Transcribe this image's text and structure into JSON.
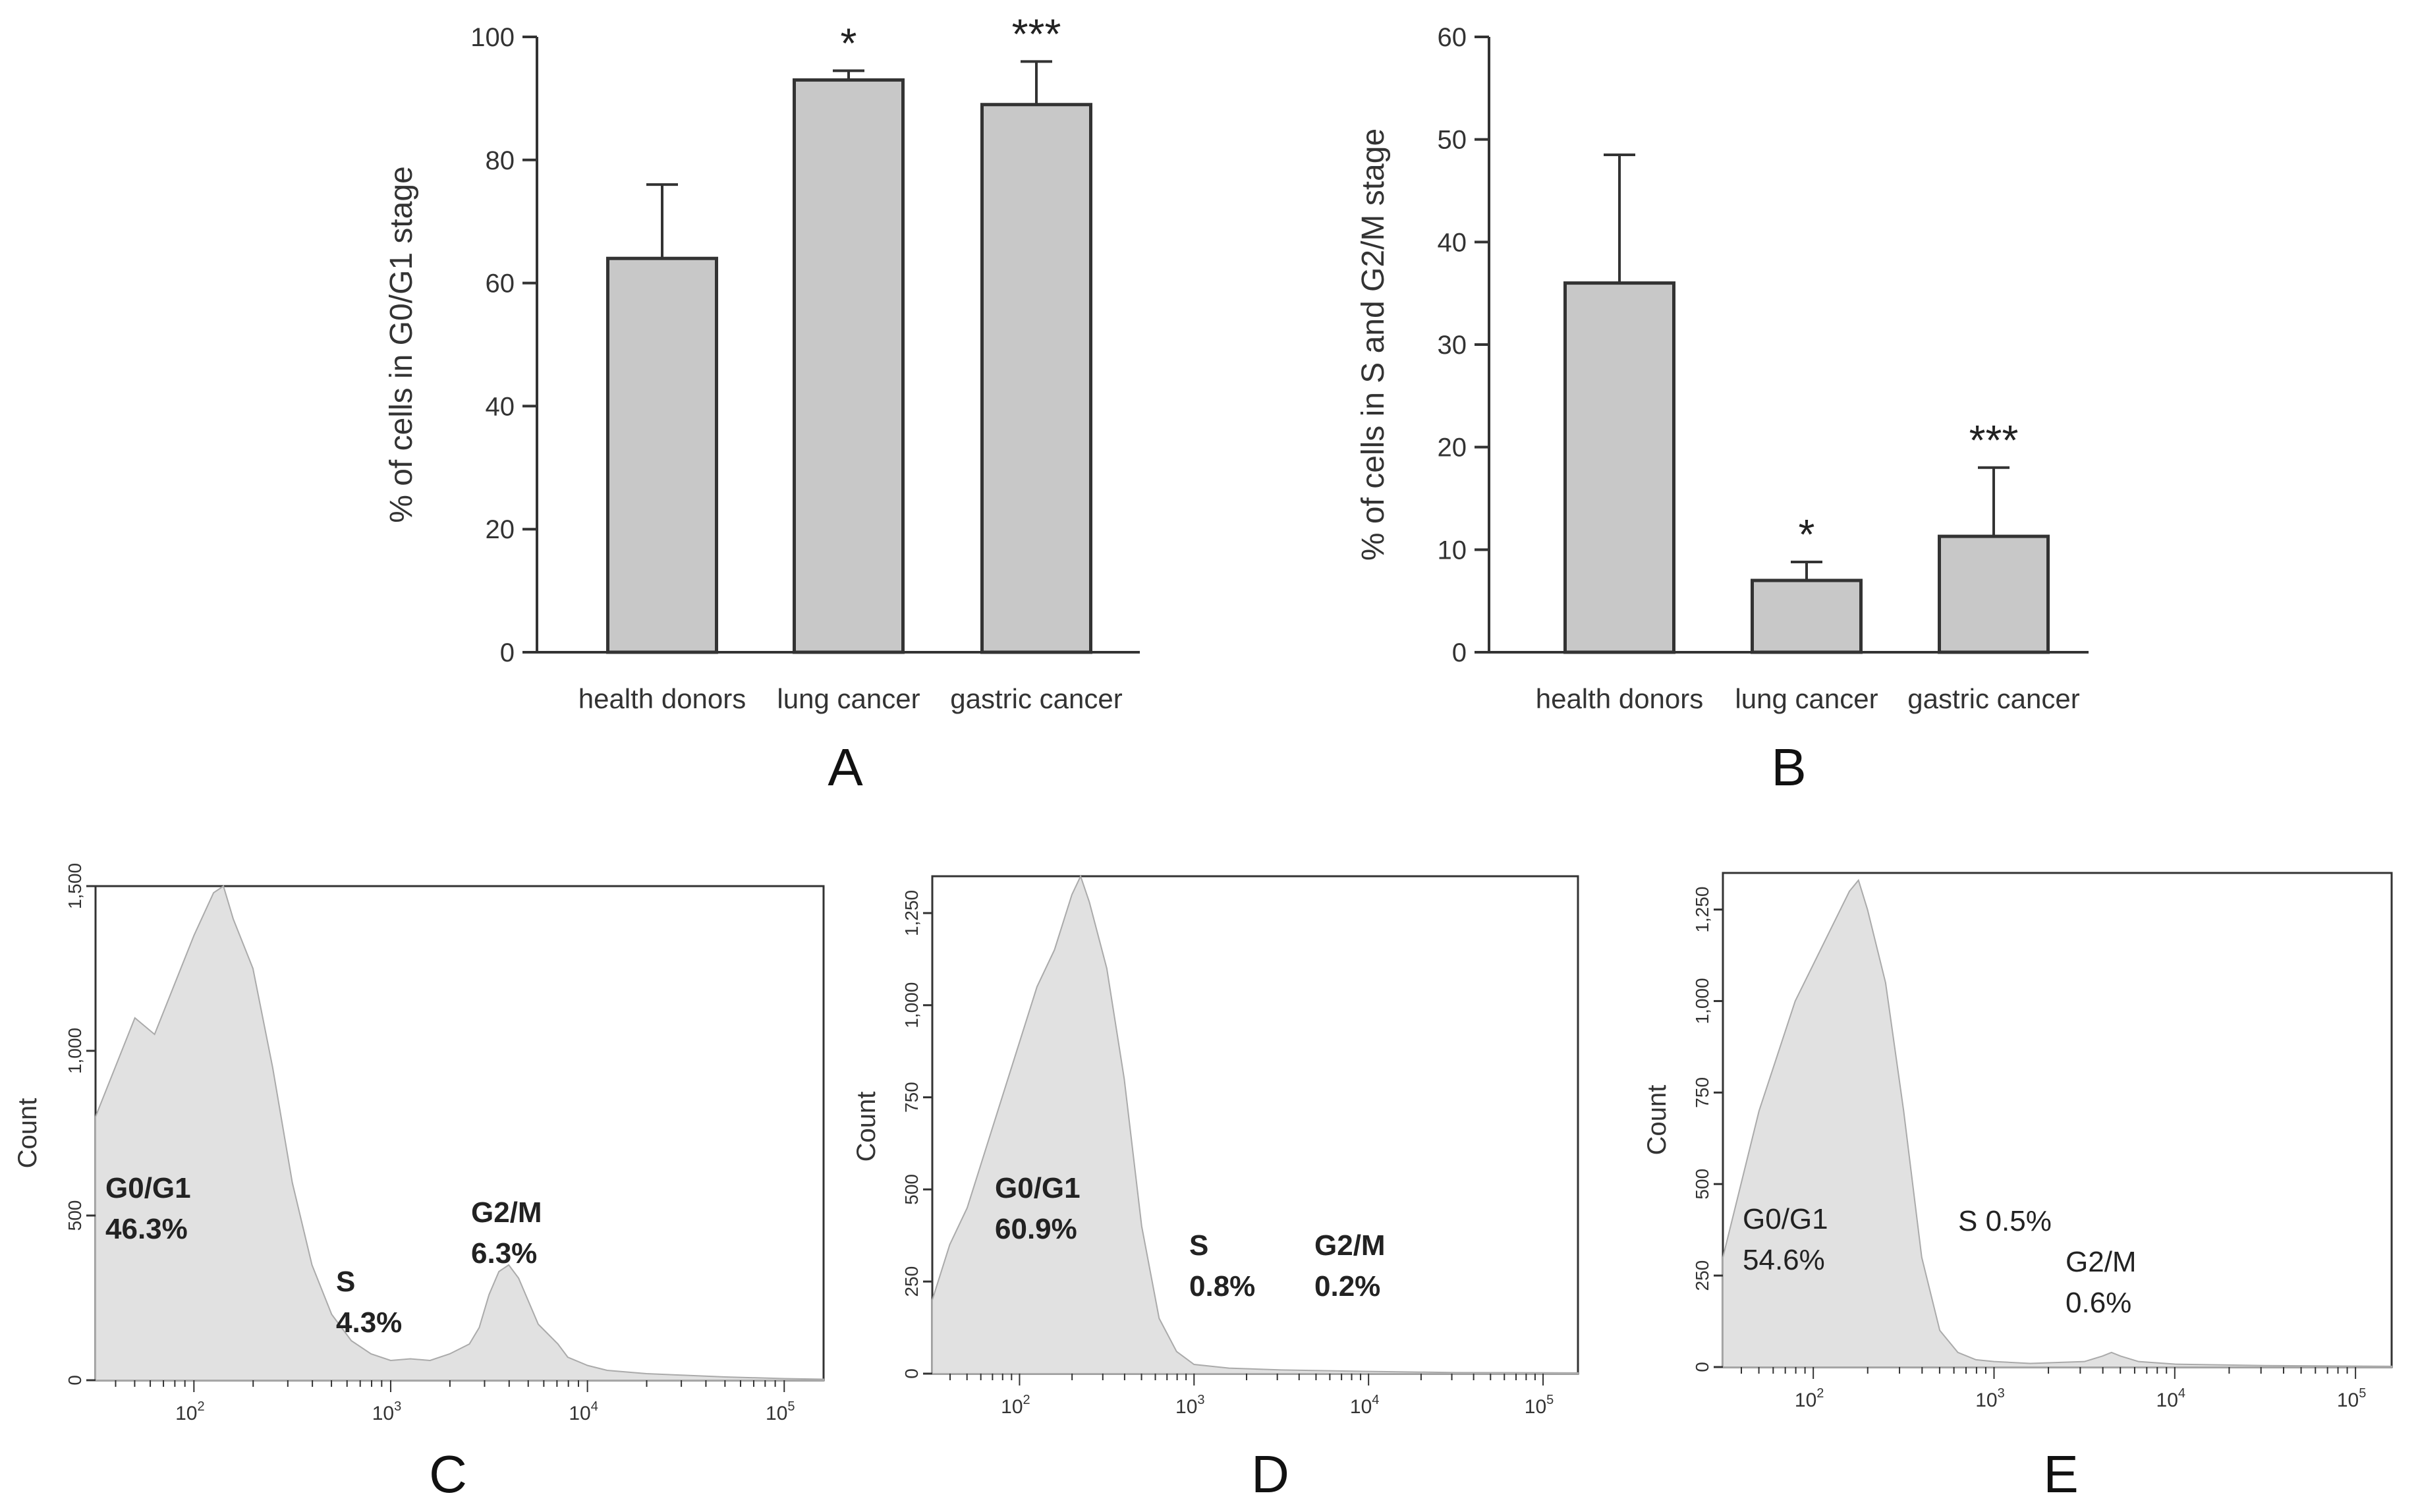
{
  "chart_data": [
    {
      "panel": "A",
      "type": "bar",
      "panel_label": "A",
      "ylabel": "% of cells in G0/G1 stage",
      "categories": [
        "health donors",
        "lung cancer",
        "gastric cancer"
      ],
      "values": [
        64,
        93,
        89
      ],
      "errors": [
        12,
        1.5,
        7
      ],
      "significance": [
        "",
        "*",
        "***"
      ],
      "ylim": [
        0,
        100
      ],
      "yticks": [
        0,
        20,
        40,
        60,
        80,
        100
      ],
      "ytick_labels": [
        "0",
        "20",
        "40",
        "60",
        "80",
        "100"
      ]
    },
    {
      "panel": "B",
      "type": "bar",
      "panel_label": "B",
      "ylabel": "% of cells in S and G2/M stage",
      "categories": [
        "health donors",
        "lung cancer",
        "gastric cancer"
      ],
      "values": [
        36,
        7,
        11.3
      ],
      "errors": [
        12.5,
        1.8,
        6.7
      ],
      "significance": [
        "",
        "*",
        "***"
      ],
      "ylim": [
        0,
        60
      ],
      "yticks": [
        0,
        10,
        20,
        30,
        40,
        50,
        60
      ],
      "ytick_labels": [
        "0",
        "10",
        "20",
        "30",
        "40",
        "50",
        "60"
      ]
    },
    {
      "panel": "C",
      "type": "area",
      "panel_label": "C",
      "ylabel": "Count",
      "ylim": [
        0,
        1500
      ],
      "yticks": [
        0,
        500,
        1000,
        1500
      ],
      "ytick_labels": [
        "0",
        "500",
        "1,000",
        "1,500"
      ],
      "x_log10_range": [
        1.5,
        5.2
      ],
      "xticks": [
        2,
        3,
        4,
        5
      ],
      "xtick_labels": [
        {
          "base": "10",
          "exp": "2"
        },
        {
          "base": "10",
          "exp": "3"
        },
        {
          "base": "10",
          "exp": "4"
        },
        {
          "base": "10",
          "exp": "5"
        }
      ],
      "x_log10": [
        1.5,
        1.6,
        1.7,
        1.8,
        1.9,
        2.0,
        2.1,
        2.15,
        2.2,
        2.3,
        2.4,
        2.5,
        2.6,
        2.7,
        2.8,
        2.9,
        3.0,
        3.1,
        3.2,
        3.3,
        3.4,
        3.45,
        3.5,
        3.55,
        3.6,
        3.65,
        3.7,
        3.75,
        3.8,
        3.85,
        3.9,
        4.0,
        4.1,
        4.3,
        4.5,
        4.7,
        5.0,
        5.2
      ],
      "counts": [
        800,
        950,
        1100,
        1050,
        1200,
        1350,
        1480,
        1500,
        1400,
        1250,
        950,
        600,
        350,
        200,
        120,
        80,
        60,
        65,
        60,
        80,
        110,
        160,
        260,
        330,
        350,
        310,
        240,
        170,
        140,
        110,
        70,
        45,
        30,
        20,
        15,
        10,
        5,
        3
      ],
      "annotations": [
        {
          "lines": [
            "G0/G1",
            "46.3%"
          ],
          "bold": true
        },
        {
          "lines": [
            "S",
            "4.3%"
          ],
          "bold": true
        },
        {
          "lines": [
            "G2/M",
            "6.3%"
          ],
          "bold": true
        }
      ]
    },
    {
      "panel": "D",
      "type": "area",
      "panel_label": "D",
      "ylabel": "Count",
      "ylim": [
        0,
        1350
      ],
      "yticks": [
        0,
        250,
        500,
        750,
        1000,
        1250
      ],
      "ytick_labels": [
        "0",
        "250",
        "500",
        "750",
        "1,000",
        "1,250"
      ],
      "x_log10_range": [
        1.5,
        5.2
      ],
      "xticks": [
        2,
        3,
        4,
        5
      ],
      "xtick_labels": [
        {
          "base": "10",
          "exp": "2"
        },
        {
          "base": "10",
          "exp": "3"
        },
        {
          "base": "10",
          "exp": "4"
        },
        {
          "base": "10",
          "exp": "5"
        }
      ],
      "x_log10": [
        1.5,
        1.6,
        1.7,
        1.8,
        1.9,
        2.0,
        2.1,
        2.2,
        2.3,
        2.35,
        2.4,
        2.5,
        2.6,
        2.7,
        2.8,
        2.9,
        3.0,
        3.2,
        3.5,
        4.0,
        4.5,
        5.2
      ],
      "counts": [
        200,
        350,
        450,
        600,
        750,
        900,
        1050,
        1150,
        1300,
        1350,
        1280,
        1100,
        800,
        400,
        150,
        60,
        25,
        15,
        10,
        6,
        3,
        2
      ],
      "annotations": [
        {
          "lines": [
            "G0/G1",
            "60.9%"
          ],
          "bold": true
        },
        {
          "lines": [
            "S",
            "0.8%"
          ],
          "bold": true
        },
        {
          "lines": [
            "G2/M",
            "0.2%"
          ],
          "bold": true
        }
      ]
    },
    {
      "panel": "E",
      "type": "area",
      "panel_label": "E",
      "ylabel": "Count",
      "ylim": [
        0,
        1350
      ],
      "yticks": [
        0,
        250,
        500,
        750,
        1000,
        1250
      ],
      "ytick_labels": [
        "0",
        "250",
        "500",
        "750",
        "1,000",
        "1,250"
      ],
      "x_log10_range": [
        1.5,
        5.2
      ],
      "xticks": [
        2,
        3,
        4,
        5
      ],
      "xtick_labels": [
        {
          "base": "10",
          "exp": "2"
        },
        {
          "base": "10",
          "exp": "3"
        },
        {
          "base": "10",
          "exp": "4"
        },
        {
          "base": "10",
          "exp": "5"
        }
      ],
      "x_log10": [
        1.5,
        1.6,
        1.7,
        1.8,
        1.9,
        2.0,
        2.1,
        2.2,
        2.25,
        2.3,
        2.4,
        2.5,
        2.6,
        2.7,
        2.8,
        2.9,
        3.0,
        3.2,
        3.5,
        3.6,
        3.65,
        3.7,
        3.8,
        4.0,
        4.5,
        5.2
      ],
      "counts": [
        300,
        500,
        700,
        850,
        1000,
        1100,
        1200,
        1300,
        1330,
        1250,
        1050,
        700,
        300,
        100,
        40,
        20,
        15,
        10,
        15,
        30,
        40,
        30,
        15,
        8,
        4,
        2
      ],
      "annotations": [
        {
          "lines": [
            "G0/G1",
            "54.6%"
          ],
          "bold": false
        },
        {
          "lines": [
            "S 0.5%"
          ],
          "bold": false
        },
        {
          "lines": [
            "G2/M",
            "0.6%"
          ],
          "bold": false
        }
      ]
    }
  ]
}
